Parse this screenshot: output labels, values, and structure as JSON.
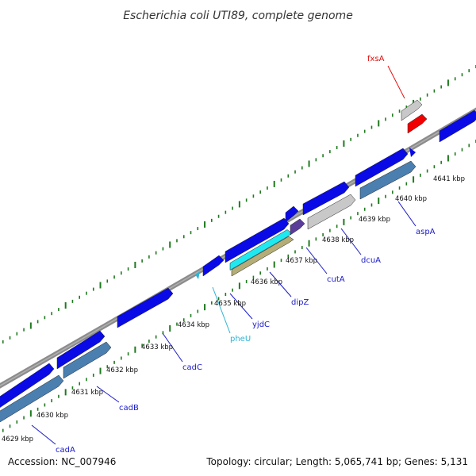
{
  "title": "Escherichia coli UTI89, complete genome",
  "footer": {
    "accession": "Accession: NC_007946",
    "summary": "Topology: circular; Length: 5,065,741 bp; Genes: 5,131"
  },
  "tick_labels": [
    "4629 kbp",
    "4630 kbp",
    "4631 kbp",
    "4632 kbp",
    "4633 kbp",
    "4634 kbp",
    "4635 kbp",
    "4636 kbp",
    "4637 kbp",
    "4638 kbp",
    "4639 kbp",
    "4640 kbp",
    "4641 kbp"
  ],
  "gene_labels": [
    "cadA",
    "cadB",
    "cadC",
    "pheU",
    "yjdC",
    "dipZ",
    "cutA",
    "dcuA",
    "aspA",
    "fxsA"
  ],
  "colors": {
    "cds": "#0a0ae6",
    "cds_blue_steel": "#4a7fb0",
    "backbone": "#8c8c8c",
    "ticks": "#1e7a1e",
    "label_blue": "#1a1acc",
    "label_trna": "#2bb5d6",
    "label_red": "#e01010",
    "gene_grey": "#c8c8c8",
    "gene_red": "#f00000",
    "gene_cyan": "#1fe8f0",
    "gene_tan": "#b5ad78",
    "gene_purple": "#5a3c9a"
  }
}
